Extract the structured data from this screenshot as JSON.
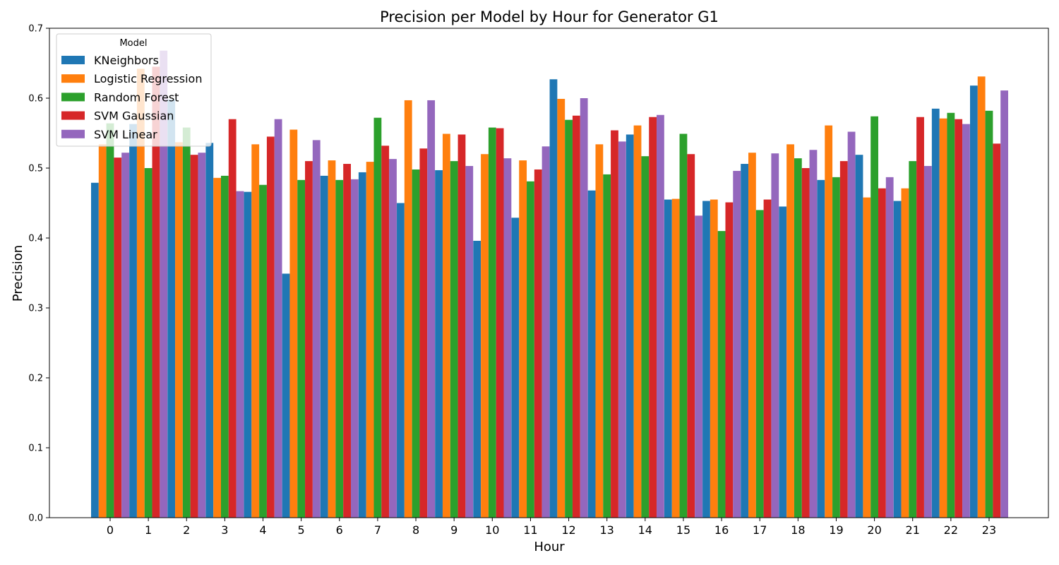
{
  "chart_data": {
    "type": "bar",
    "title": "Precision per Model by Hour for Generator G1",
    "xlabel": "Hour",
    "ylabel": "Precision",
    "ylim": [
      0,
      0.7
    ],
    "yticks": [
      "0.0",
      "0.1",
      "0.2",
      "0.3",
      "0.4",
      "0.5",
      "0.6",
      "0.7"
    ],
    "categories": [
      "0",
      "1",
      "2",
      "3",
      "4",
      "5",
      "6",
      "7",
      "8",
      "9",
      "10",
      "11",
      "12",
      "13",
      "14",
      "15",
      "16",
      "17",
      "18",
      "19",
      "20",
      "21",
      "22",
      "23"
    ],
    "legend": {
      "title": "Model",
      "placement": "upper-left"
    },
    "grid": false,
    "series": [
      {
        "name": "KNeighbors",
        "color": "#1f77b4",
        "values": [
          0.479,
          0.563,
          0.598,
          0.536,
          0.466,
          0.349,
          0.489,
          0.494,
          0.45,
          0.497,
          0.396,
          0.429,
          0.627,
          0.468,
          0.548,
          0.455,
          0.453,
          0.506,
          0.445,
          0.483,
          0.519,
          0.453,
          0.585,
          0.618
        ]
      },
      {
        "name": "Logistic Regression",
        "color": "#ff7f0e",
        "values": [
          0.534,
          0.642,
          0.537,
          0.486,
          0.534,
          0.555,
          0.511,
          0.509,
          0.597,
          0.549,
          0.52,
          0.511,
          0.599,
          0.534,
          0.561,
          0.456,
          0.455,
          0.522,
          0.534,
          0.561,
          0.458,
          0.471,
          0.571,
          0.631
        ]
      },
      {
        "name": "Random Forest",
        "color": "#2ca02c",
        "values": [
          0.564,
          0.5,
          0.558,
          0.489,
          0.476,
          0.483,
          0.483,
          0.572,
          0.498,
          0.51,
          0.558,
          0.481,
          0.569,
          0.491,
          0.517,
          0.549,
          0.41,
          0.44,
          0.514,
          0.487,
          0.574,
          0.51,
          0.579,
          0.582
        ]
      },
      {
        "name": "SVM Gaussian",
        "color": "#d62728",
        "values": [
          0.515,
          0.645,
          0.519,
          0.57,
          0.545,
          0.51,
          0.506,
          0.532,
          0.528,
          0.548,
          0.557,
          0.498,
          0.575,
          0.554,
          0.573,
          0.52,
          0.451,
          0.455,
          0.5,
          0.51,
          0.471,
          0.573,
          0.57,
          0.535
        ]
      },
      {
        "name": "SVM Linear",
        "color": "#9467bd",
        "values": [
          0.522,
          0.668,
          0.522,
          0.467,
          0.57,
          0.54,
          0.484,
          0.513,
          0.597,
          0.503,
          0.514,
          0.531,
          0.6,
          0.538,
          0.576,
          0.432,
          0.496,
          0.521,
          0.526,
          0.552,
          0.487,
          0.503,
          0.563,
          0.611
        ]
      }
    ]
  }
}
